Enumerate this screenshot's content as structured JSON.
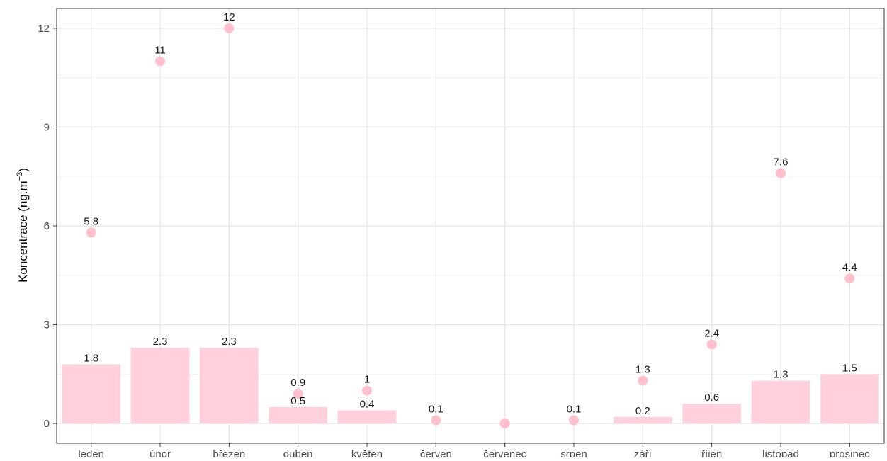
{
  "chart_data": {
    "type": "bar",
    "title": "",
    "xlabel": "",
    "ylabel": "Koncentrace (ng.m",
    "ylabel_superscript": "−3",
    "ylabel_close": ")",
    "ylim": [
      -0.6,
      12.6
    ],
    "yticks": [
      0,
      3,
      6,
      9,
      12
    ],
    "grid": true,
    "categories": [
      "leden",
      "únor",
      "březen",
      "duben",
      "květen",
      "červen",
      "červenec",
      "srpen",
      "září",
      "říjen",
      "listopad",
      "prosinec"
    ],
    "series": [
      {
        "mark": "bar",
        "values": [
          1.8,
          2.3,
          2.3,
          0.5,
          0.4,
          null,
          null,
          null,
          0.2,
          0.6,
          1.3,
          1.5
        ],
        "labels": [
          "1.8",
          "2.3",
          "2.3",
          "0.5",
          "0.4",
          null,
          null,
          null,
          "0.2",
          "0.6",
          "1.3",
          "1.5"
        ],
        "color": "#ffd1dc"
      },
      {
        "mark": "point",
        "values": [
          5.8,
          11,
          12,
          0.9,
          1,
          0.1,
          0,
          0.1,
          1.3,
          2.4,
          7.6,
          4.4
        ],
        "labels": [
          "5.8",
          "11",
          "12",
          "0.9",
          "1",
          "0.1",
          null,
          "0.1",
          "1.3",
          "2.4",
          "7.6",
          "4.4"
        ],
        "color": "#ffc0cb"
      }
    ]
  }
}
